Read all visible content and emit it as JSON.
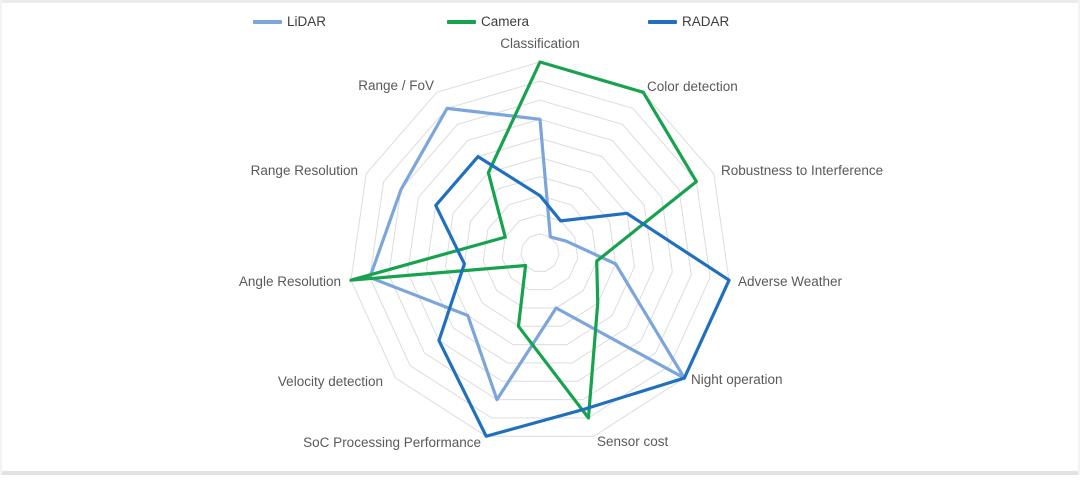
{
  "page": {
    "background": "#ffffff",
    "edge_color": "#ebebeb"
  },
  "chart_data": {
    "type": "radar",
    "title": "",
    "legend_position": "top",
    "grid": true,
    "gridline_color": "#dcdcdc",
    "axis_label_color": "#595959",
    "scale": {
      "min": 0,
      "max": 10,
      "ring_step": 1
    },
    "categories": [
      "Classification",
      "Color detection",
      "Robustness to Interference",
      "Adverse Weather",
      "Night operation",
      "Sensor cost",
      "SoC Processing Performance",
      "Velocity detection",
      "Angle Resolution",
      "Range Resolution",
      "Range / FoV"
    ],
    "series": [
      {
        "name": "LiDAR",
        "color": "#7CA5DB",
        "values": [
          7,
          1,
          1.5,
          4,
          10,
          3,
          8,
          5,
          9,
          8,
          9
        ]
      },
      {
        "name": "Camera",
        "color": "#17A24E",
        "values": [
          10,
          10,
          9,
          3,
          4,
          9,
          4,
          1,
          10,
          2,
          5
        ]
      },
      {
        "name": "RADAR",
        "color": "#2170BD",
        "values": [
          3,
          2,
          5,
          10,
          10,
          8.5,
          10,
          7,
          4,
          6,
          6
        ]
      }
    ]
  }
}
